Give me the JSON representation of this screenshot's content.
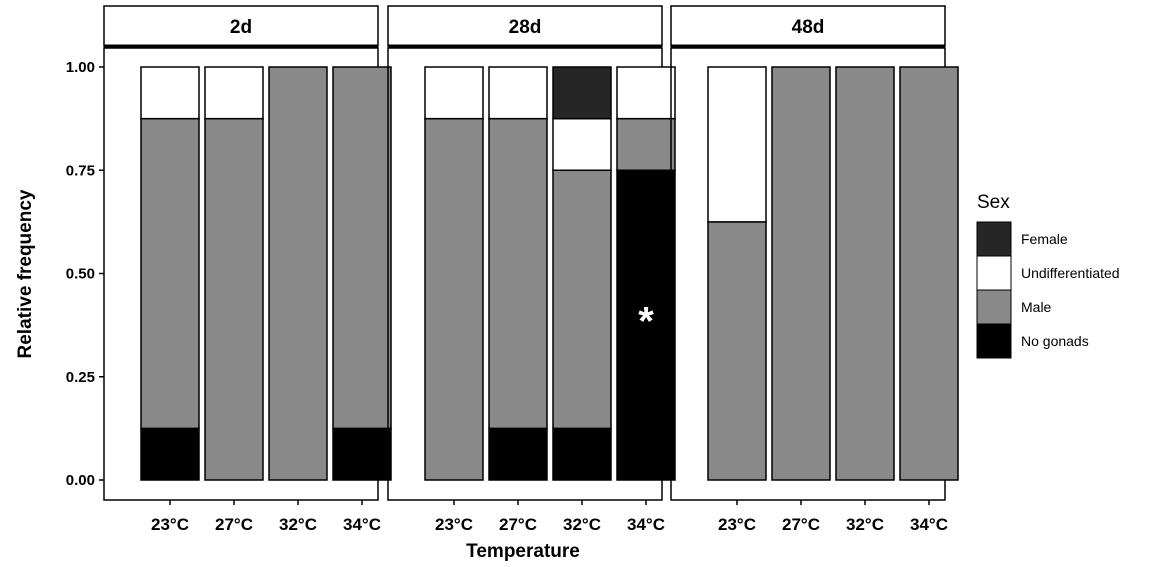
{
  "chart_data": {
    "type": "bar",
    "stacked": true,
    "panels": [
      "2d",
      "28d",
      "48d"
    ],
    "categories": [
      "23°C",
      "27°C",
      "32°C",
      "34°C"
    ],
    "xlabel": "Temperature",
    "ylabel": "Relative frequency",
    "ylim": [
      0,
      1
    ],
    "yticks": [
      "0.00",
      "0.25",
      "0.50",
      "0.75",
      "1.00"
    ],
    "grid": false,
    "legend": {
      "title": "Sex",
      "placement": "right",
      "entries": [
        "Female",
        "Undifferentiated",
        "Male",
        "No gonads"
      ]
    },
    "colors": {
      "Female": "#262626",
      "Undifferentiated": "#ffffff",
      "Male": "#898989",
      "No gonads": "#000000"
    },
    "stack_order": [
      "No gonads",
      "Male",
      "Undifferentiated",
      "Female"
    ],
    "data": [
      {
        "panel": "2d",
        "series": [
          {
            "name": "No gonads",
            "values": [
              0.125,
              0,
              0,
              0.125
            ]
          },
          {
            "name": "Male",
            "values": [
              0.75,
              0.875,
              1.0,
              0.875
            ]
          },
          {
            "name": "Undifferentiated",
            "values": [
              0.125,
              0.125,
              0,
              0
            ]
          },
          {
            "name": "Female",
            "values": [
              0,
              0,
              0,
              0
            ]
          }
        ]
      },
      {
        "panel": "28d",
        "series": [
          {
            "name": "No gonads",
            "values": [
              0,
              0.125,
              0.125,
              0.75
            ]
          },
          {
            "name": "Male",
            "values": [
              0.875,
              0.75,
              0.625,
              0.125
            ]
          },
          {
            "name": "Undifferentiated",
            "values": [
              0.125,
              0.125,
              0.125,
              0.125
            ]
          },
          {
            "name": "Female",
            "values": [
              0,
              0,
              0.125,
              0
            ]
          }
        ]
      },
      {
        "panel": "48d",
        "series": [
          {
            "name": "No gonads",
            "values": [
              0,
              0,
              0,
              0
            ]
          },
          {
            "name": "Male",
            "values": [
              0.625,
              1.0,
              1.0,
              1.0
            ]
          },
          {
            "name": "Undifferentiated",
            "values": [
              0.375,
              0,
              0,
              0
            ]
          },
          {
            "name": "Female",
            "values": [
              0,
              0,
              0,
              0
            ]
          }
        ]
      }
    ],
    "annotations": [
      {
        "panel": "28d",
        "category": "34°C",
        "text": "*",
        "y": 0.41
      }
    ]
  }
}
